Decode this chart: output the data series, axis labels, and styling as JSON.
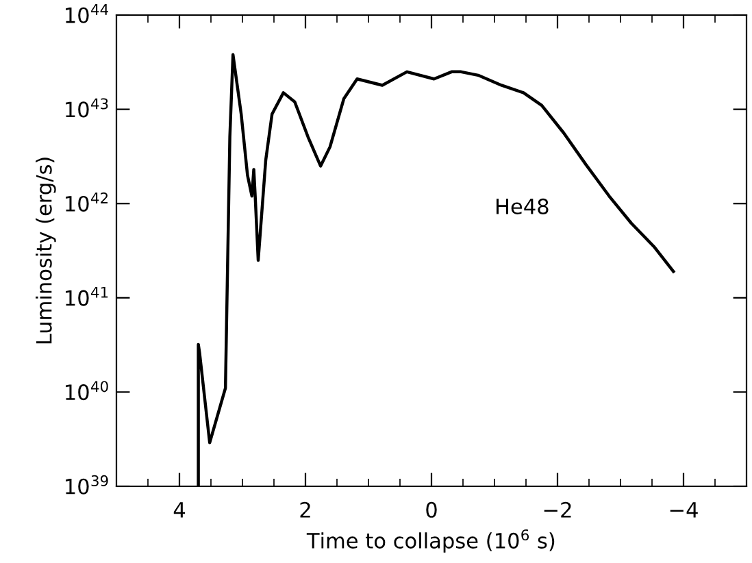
{
  "chart_data": {
    "type": "line",
    "xlabel": "Time to collapse (10$^{6}$ s)",
    "ylabel": "Luminosity (erg/s)",
    "log": "y",
    "grid": false,
    "legend": false,
    "marker": "none",
    "line_style": "solid",
    "xlim": [
      5,
      -5
    ],
    "xticks": [
      4,
      2,
      0,
      {
        "value": -2,
        "label": "−2"
      },
      {
        "value": -4,
        "label": "−4"
      }
    ],
    "ylim": [
      1e+39,
      1e+44
    ],
    "yticks": [
      {
        "value": 1e+39,
        "label": "10$^{39}$"
      },
      {
        "value": 1e+40,
        "label": "10$^{40}$"
      },
      {
        "value": 1e+41,
        "label": "10$^{41}$"
      },
      {
        "value": 1e+42,
        "label": "10$^{42}$"
      },
      {
        "value": 1e+43,
        "label": "10$^{43}$"
      },
      {
        "value": 1e+44,
        "label": "10$^{44}$"
      }
    ],
    "series": [
      {
        "name": "He48",
        "color": "#000000",
        "x": [
          3.7,
          3.7,
          3.68,
          3.52,
          3.27,
          3.2,
          3.15,
          3.02,
          2.92,
          2.85,
          2.82,
          2.8,
          2.75,
          2.63,
          2.53,
          2.35,
          2.17,
          1.96,
          1.76,
          1.61,
          1.39,
          1.18,
          0.78,
          0.39,
          -0.04,
          -0.32,
          -0.47,
          -0.74,
          -1.11,
          -1.46,
          -1.75,
          -2.1,
          -2.45,
          -2.82,
          -3.17,
          -3.53,
          -3.84
        ],
        "values": [
          1e+39,
          3.2e+40,
          2.6e+40,
          2.9e+39,
          1.1e+40,
          5.1e+42,
          3.8e+43,
          8.9e+42,
          2e+42,
          1.2e+42,
          2.3e+42,
          1.3e+42,
          2.5e+41,
          2.9e+42,
          8.9e+42,
          1.5e+43,
          1.2e+43,
          5.1e+42,
          2.5e+42,
          4e+42,
          1.3e+43,
          2.1e+43,
          1.8e+43,
          2.5e+43,
          2.1e+43,
          2.5e+43,
          2.5e+43,
          2.3e+43,
          1.8e+43,
          1.5e+43,
          1.1e+43,
          5.6e+42,
          2.6e+42,
          1.2e+42,
          6.2e+41,
          3.5e+41,
          1.9e+41
        ]
      }
    ]
  }
}
